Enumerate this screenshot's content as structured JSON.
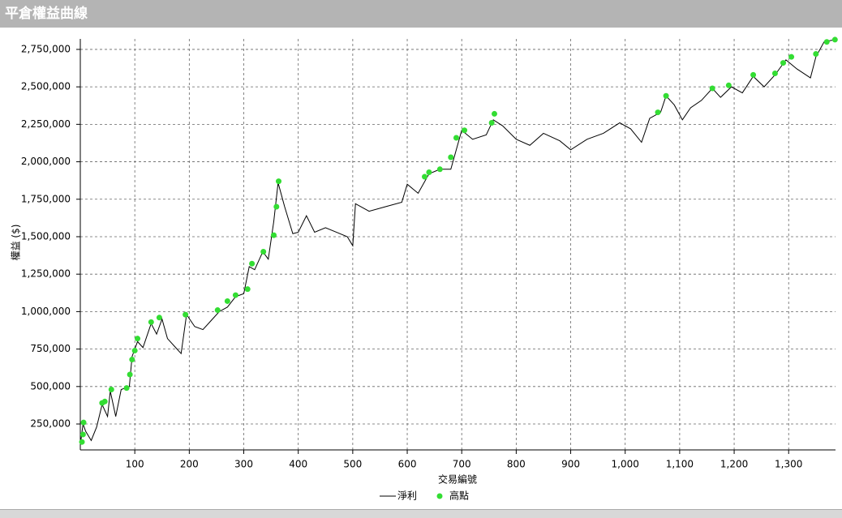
{
  "chart_data": {
    "type": "line",
    "title": "平倉權益曲線",
    "x_label": "交易編號",
    "y_label": "權益 ($)",
    "grid": true,
    "xlim": [
      0,
      1386
    ],
    "ylim": [
      77000,
      2820000
    ],
    "xticks": [
      100,
      200,
      300,
      400,
      500,
      600,
      700,
      800,
      900,
      {
        "value": 1000,
        "label": "1,000"
      },
      {
        "value": 1100,
        "label": "1,100"
      },
      {
        "value": 1200,
        "label": "1,200"
      },
      {
        "value": 1300,
        "label": "1,300"
      }
    ],
    "yticks": [
      {
        "value": 250000,
        "label": "250,000"
      },
      {
        "value": 500000,
        "label": "500,000"
      },
      {
        "value": 750000,
        "label": "750,000"
      },
      {
        "value": 1000000,
        "label": "1,000,000"
      },
      {
        "value": 1250000,
        "label": "1,250,000"
      },
      {
        "value": 1500000,
        "label": "1,500,000"
      },
      {
        "value": 1750000,
        "label": "1,750,000"
      },
      {
        "value": 2000000,
        "label": "2,000,000"
      },
      {
        "value": 2250000,
        "label": "2,250,000"
      },
      {
        "value": 2500000,
        "label": "2,500,000"
      },
      {
        "value": 2750000,
        "label": "2,750,000"
      }
    ],
    "series": [
      {
        "name": "淨利",
        "type": "line",
        "color": "#000000",
        "x": [
          0,
          5,
          10,
          20,
          30,
          40,
          50,
          55,
          65,
          75,
          90,
          95,
          105,
          115,
          130,
          140,
          150,
          160,
          175,
          185,
          195,
          210,
          225,
          240,
          255,
          270,
          285,
          300,
          310,
          320,
          335,
          345,
          355,
          363,
          375,
          390,
          400,
          415,
          430,
          450,
          470,
          490,
          500,
          505,
          530,
          560,
          590,
          600,
          620,
          640,
          660,
          680,
          700,
          720,
          745,
          758,
          775,
          800,
          825,
          850,
          880,
          900,
          930,
          960,
          990,
          1010,
          1030,
          1045,
          1065,
          1075,
          1090,
          1105,
          1120,
          1140,
          1160,
          1175,
          1195,
          1215,
          1235,
          1255,
          1275,
          1295,
          1315,
          1340,
          1350,
          1365,
          1385
        ],
        "values": [
          110000,
          250000,
          200000,
          140000,
          230000,
          380000,
          300000,
          470000,
          300000,
          480000,
          500000,
          700000,
          800000,
          760000,
          920000,
          850000,
          950000,
          820000,
          760000,
          720000,
          980000,
          900000,
          880000,
          940000,
          1000000,
          1030000,
          1100000,
          1120000,
          1300000,
          1280000,
          1400000,
          1350000,
          1600000,
          1860000,
          1700000,
          1520000,
          1530000,
          1640000,
          1530000,
          1560000,
          1530000,
          1500000,
          1440000,
          1720000,
          1670000,
          1700000,
          1730000,
          1850000,
          1790000,
          1920000,
          1950000,
          1950000,
          2210000,
          2150000,
          2180000,
          2280000,
          2240000,
          2150000,
          2110000,
          2190000,
          2140000,
          2080000,
          2150000,
          2190000,
          2260000,
          2220000,
          2130000,
          2290000,
          2330000,
          2440000,
          2380000,
          2280000,
          2360000,
          2410000,
          2490000,
          2430000,
          2500000,
          2460000,
          2570000,
          2500000,
          2580000,
          2680000,
          2620000,
          2560000,
          2700000,
          2800000,
          2815000
        ]
      },
      {
        "name": "高點",
        "type": "scatter",
        "color": "#33dd33",
        "x": [
          3,
          5,
          6,
          40,
          45,
          57,
          85,
          91,
          95,
          100,
          105,
          130,
          145,
          193,
          252,
          270,
          285,
          307,
          315,
          336,
          355,
          360,
          364,
          632,
          640,
          660,
          680,
          690,
          705,
          755,
          760,
          1060,
          1075,
          1160,
          1190,
          1235,
          1275,
          1290,
          1305,
          1350,
          1370,
          1385
        ],
        "values": [
          130000,
          180000,
          260000,
          390000,
          400000,
          480000,
          490000,
          580000,
          680000,
          740000,
          820000,
          930000,
          960000,
          980000,
          1010000,
          1070000,
          1110000,
          1150000,
          1320000,
          1400000,
          1510000,
          1700000,
          1870000,
          1900000,
          1930000,
          1950000,
          2030000,
          2160000,
          2210000,
          2260000,
          2320000,
          2330000,
          2440000,
          2490000,
          2510000,
          2580000,
          2590000,
          2660000,
          2700000,
          2720000,
          2800000,
          2815000
        ]
      }
    ]
  }
}
